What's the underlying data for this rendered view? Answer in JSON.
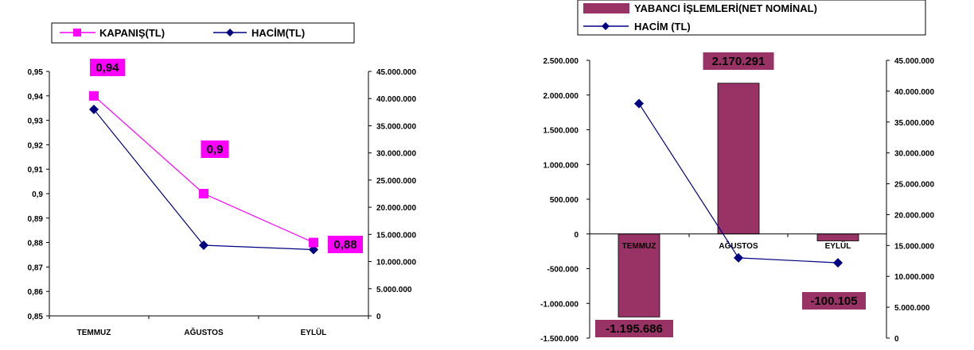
{
  "chart_data": [
    {
      "type": "line",
      "categories": [
        "TEMMUZ",
        "AĞUSTOS",
        "EYLÜL"
      ],
      "series": [
        {
          "name": "KAPANIŞ(TL)",
          "axis": "left",
          "values": [
            0.94,
            0.9,
            0.88
          ],
          "color": "#ff00ff",
          "marker": "square",
          "data_labels": [
            "0,94",
            "0,9",
            "0,88"
          ],
          "label_bg": "#ff00ff"
        },
        {
          "name": "HACİM(TL)",
          "axis": "right",
          "values": [
            38000000,
            13000000,
            12200000
          ],
          "color": "#000080",
          "marker": "diamond"
        }
      ],
      "y_left": {
        "min": 0.85,
        "max": 0.95,
        "ticks": [
          "0,95",
          "0,94",
          "0,93",
          "0,92",
          "0,91",
          "0,9",
          "0,89",
          "0,88",
          "0,87",
          "0,86",
          "0,85"
        ]
      },
      "y_right": {
        "min": 0,
        "max": 45000000,
        "ticks": [
          "45.000.000",
          "40.000.000",
          "35.000.000",
          "30.000.000",
          "25.000.000",
          "20.000.000",
          "15.000.000",
          "10.000.000",
          "5.000.000",
          "0"
        ]
      },
      "legend": "top"
    },
    {
      "type": "bar",
      "categories": [
        "TEMMUZ",
        "AĞUSTOS",
        "EYLÜL"
      ],
      "series": [
        {
          "name": "YABANCI İŞLEMLERİ(NET NOMİNAL)",
          "axis": "left",
          "values": [
            -1195686,
            2170291,
            -100105
          ],
          "color": "#993366",
          "data_labels": [
            "-1.195.686",
            "2.170.291",
            "-100.105"
          ],
          "label_bg": "#993366"
        },
        {
          "name": "HACİM (TL)",
          "axis": "right",
          "type": "line",
          "values": [
            38000000,
            13000000,
            12200000
          ],
          "color": "#000080",
          "marker": "diamond"
        }
      ],
      "y_left": {
        "min": -1500000,
        "max": 2500000,
        "ticks": [
          "2.500.000",
          "2.000.000",
          "1.500.000",
          "1.000.000",
          "500.000",
          "0",
          "-500.000",
          "-1.000.000",
          "-1.500.000"
        ]
      },
      "y_right": {
        "min": 0,
        "max": 45000000,
        "ticks": [
          "45.000.000",
          "40.000.000",
          "35.000.000",
          "30.000.000",
          "25.000.000",
          "20.000.000",
          "15.000.000",
          "10.000.000",
          "5.000.000",
          "0"
        ]
      },
      "legend": "top"
    }
  ]
}
